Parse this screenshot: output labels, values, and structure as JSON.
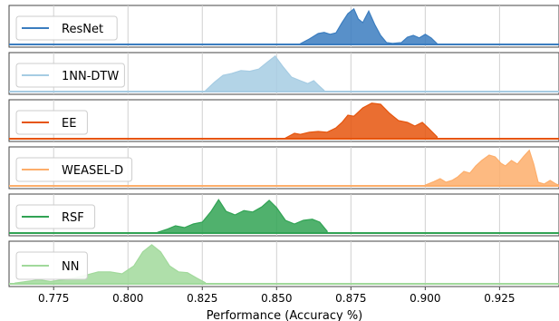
{
  "chart_data": {
    "type": "area",
    "subtype": "ridgeline-density",
    "xlabel": "Performance (Accuracy %)",
    "xlim": [
      0.76,
      0.945
    ],
    "x_ticks": [
      0.775,
      0.8,
      0.825,
      0.85,
      0.875,
      0.9,
      0.925
    ],
    "x_tick_labels": [
      "0.775",
      "0.800",
      "0.825",
      "0.850",
      "0.875",
      "0.900",
      "0.925"
    ],
    "grid": true,
    "legend_placement": "left in each panel",
    "series": [
      {
        "name": "ResNet",
        "color": "#3b7dbf",
        "points": [
          [
            0.858,
            0.02
          ],
          [
            0.861,
            0.15
          ],
          [
            0.864,
            0.3
          ],
          [
            0.866,
            0.33
          ],
          [
            0.868,
            0.28
          ],
          [
            0.87,
            0.32
          ],
          [
            0.872,
            0.6
          ],
          [
            0.874,
            0.85
          ],
          [
            0.876,
            0.98
          ],
          [
            0.8775,
            0.7
          ],
          [
            0.879,
            0.6
          ],
          [
            0.881,
            0.92
          ],
          [
            0.883,
            0.55
          ],
          [
            0.885,
            0.25
          ],
          [
            0.887,
            0.05
          ],
          [
            0.889,
            0.03
          ],
          [
            0.892,
            0.05
          ],
          [
            0.894,
            0.2
          ],
          [
            0.896,
            0.25
          ],
          [
            0.898,
            0.18
          ],
          [
            0.9,
            0.28
          ],
          [
            0.902,
            0.18
          ],
          [
            0.904,
            0.02
          ]
        ]
      },
      {
        "name": "1NN-DTW",
        "color": "#a6cce3",
        "points": [
          [
            0.826,
            0.02
          ],
          [
            0.829,
            0.25
          ],
          [
            0.832,
            0.45
          ],
          [
            0.835,
            0.5
          ],
          [
            0.838,
            0.58
          ],
          [
            0.841,
            0.56
          ],
          [
            0.844,
            0.62
          ],
          [
            0.847,
            0.82
          ],
          [
            0.8495,
            0.98
          ],
          [
            0.852,
            0.7
          ],
          [
            0.855,
            0.4
          ],
          [
            0.858,
            0.3
          ],
          [
            0.8605,
            0.22
          ],
          [
            0.8625,
            0.3
          ],
          [
            0.864,
            0.18
          ],
          [
            0.866,
            0.03
          ]
        ]
      },
      {
        "name": "EE",
        "color": "#e6550d",
        "points": [
          [
            0.853,
            0.02
          ],
          [
            0.856,
            0.15
          ],
          [
            0.858,
            0.12
          ],
          [
            0.861,
            0.18
          ],
          [
            0.864,
            0.2
          ],
          [
            0.867,
            0.18
          ],
          [
            0.87,
            0.3
          ],
          [
            0.872,
            0.45
          ],
          [
            0.874,
            0.65
          ],
          [
            0.876,
            0.62
          ],
          [
            0.879,
            0.85
          ],
          [
            0.882,
            0.98
          ],
          [
            0.885,
            0.95
          ],
          [
            0.888,
            0.7
          ],
          [
            0.891,
            0.5
          ],
          [
            0.894,
            0.45
          ],
          [
            0.8965,
            0.35
          ],
          [
            0.899,
            0.45
          ],
          [
            0.901,
            0.3
          ],
          [
            0.904,
            0.05
          ]
        ]
      },
      {
        "name": "WEASEL-D",
        "color": "#fdae6b",
        "points": [
          [
            0.9,
            0.02
          ],
          [
            0.903,
            0.12
          ],
          [
            0.905,
            0.2
          ],
          [
            0.907,
            0.1
          ],
          [
            0.909,
            0.15
          ],
          [
            0.911,
            0.25
          ],
          [
            0.913,
            0.4
          ],
          [
            0.915,
            0.35
          ],
          [
            0.917,
            0.55
          ],
          [
            0.919,
            0.7
          ],
          [
            0.9215,
            0.85
          ],
          [
            0.9235,
            0.8
          ],
          [
            0.9255,
            0.62
          ],
          [
            0.927,
            0.55
          ],
          [
            0.929,
            0.7
          ],
          [
            0.931,
            0.6
          ],
          [
            0.933,
            0.8
          ],
          [
            0.935,
            0.98
          ],
          [
            0.9365,
            0.6
          ],
          [
            0.938,
            0.1
          ],
          [
            0.94,
            0.05
          ],
          [
            0.942,
            0.15
          ],
          [
            0.944,
            0.05
          ],
          [
            0.945,
            0.02
          ]
        ]
      },
      {
        "name": "RSF",
        "color": "#31a354",
        "points": [
          [
            0.81,
            0.02
          ],
          [
            0.813,
            0.1
          ],
          [
            0.816,
            0.2
          ],
          [
            0.819,
            0.15
          ],
          [
            0.822,
            0.25
          ],
          [
            0.825,
            0.3
          ],
          [
            0.828,
            0.6
          ],
          [
            0.8305,
            0.92
          ],
          [
            0.833,
            0.6
          ],
          [
            0.836,
            0.5
          ],
          [
            0.839,
            0.62
          ],
          [
            0.842,
            0.58
          ],
          [
            0.845,
            0.72
          ],
          [
            0.8475,
            0.9
          ],
          [
            0.85,
            0.7
          ],
          [
            0.853,
            0.35
          ],
          [
            0.856,
            0.25
          ],
          [
            0.859,
            0.35
          ],
          [
            0.862,
            0.38
          ],
          [
            0.8645,
            0.3
          ],
          [
            0.867,
            0.05
          ]
        ]
      },
      {
        "name": "NN",
        "color": "#a1d99b",
        "points": [
          [
            0.762,
            0.02
          ],
          [
            0.766,
            0.06
          ],
          [
            0.77,
            0.1
          ],
          [
            0.774,
            0.06
          ],
          [
            0.778,
            0.1
          ],
          [
            0.782,
            0.15
          ],
          [
            0.786,
            0.22
          ],
          [
            0.79,
            0.3
          ],
          [
            0.794,
            0.3
          ],
          [
            0.798,
            0.25
          ],
          [
            0.802,
            0.45
          ],
          [
            0.805,
            0.8
          ],
          [
            0.808,
            0.98
          ],
          [
            0.811,
            0.8
          ],
          [
            0.814,
            0.45
          ],
          [
            0.817,
            0.3
          ],
          [
            0.82,
            0.28
          ],
          [
            0.823,
            0.15
          ],
          [
            0.826,
            0.03
          ]
        ]
      }
    ]
  }
}
